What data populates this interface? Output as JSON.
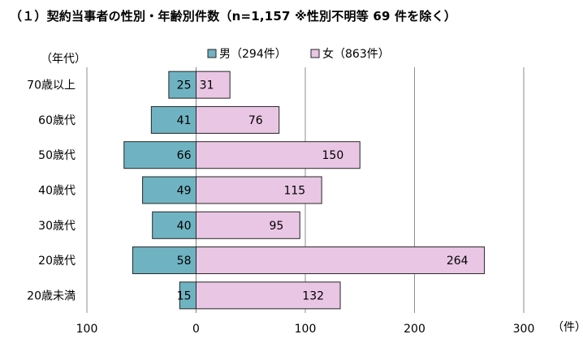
{
  "title": "（１）契約当事者の性別・年齢別件数（n=1,157 ※性別不明等 69 件を除く）",
  "chart_data": {
    "type": "bar",
    "orientation": "horizontal-butterfly",
    "y_axis_title": "（年代）",
    "x_unit": "（件）",
    "categories": [
      "70歳以上",
      "60歳代",
      "50歳代",
      "40歳代",
      "30歳代",
      "20歳代",
      "20歳未満"
    ],
    "series": [
      {
        "name": "男（294件）",
        "direction": "left",
        "color": "#6fb3c2",
        "values": [
          25,
          41,
          66,
          49,
          40,
          58,
          15
        ]
      },
      {
        "name": "女（863件）",
        "direction": "right",
        "color": "#e9c6e4",
        "values": [
          31,
          76,
          150,
          115,
          95,
          264,
          132
        ]
      }
    ],
    "xlim": [
      -100,
      300
    ],
    "xticks": [
      -100,
      0,
      100,
      200,
      300
    ],
    "xtick_labels": [
      "100",
      "0",
      "100",
      "200",
      "300"
    ],
    "grid": true,
    "legend_position": "top"
  }
}
